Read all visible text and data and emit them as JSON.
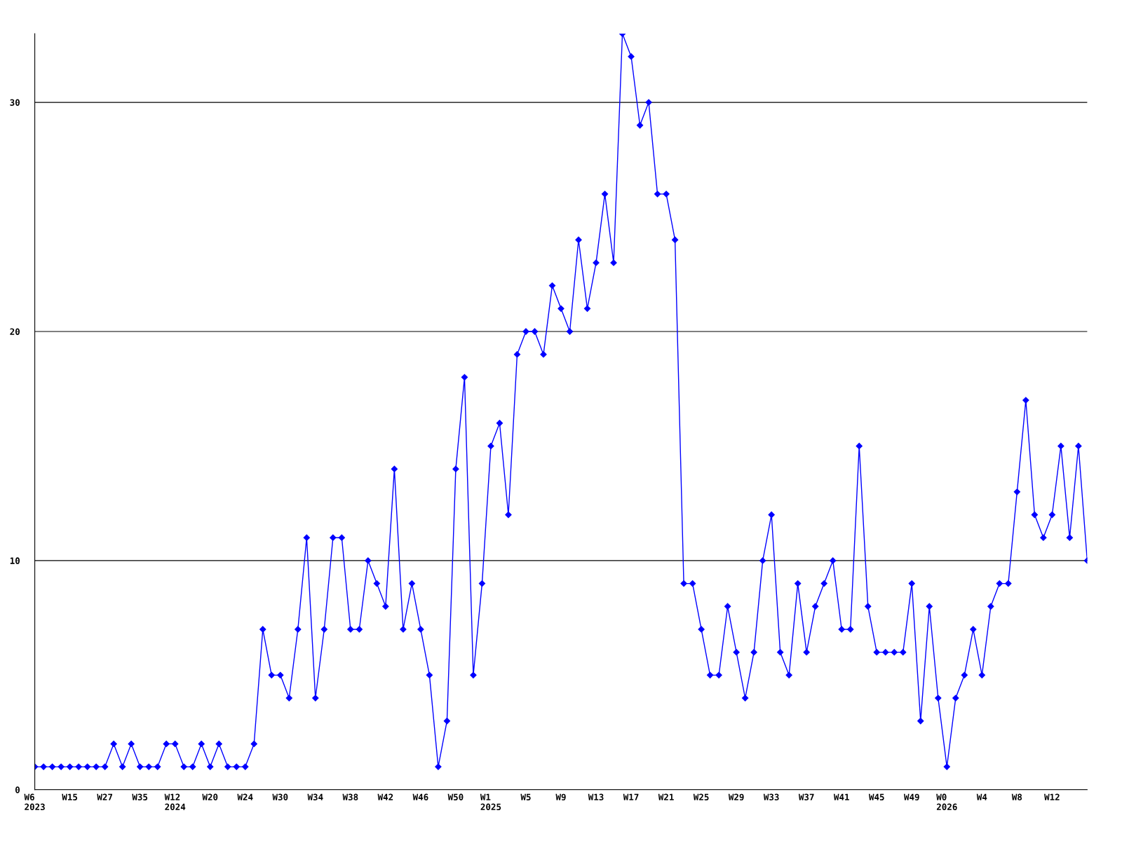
{
  "chart_data": {
    "type": "line",
    "categories": [
      "W6\n2023",
      null,
      null,
      null,
      "W15",
      null,
      null,
      null,
      "W27",
      null,
      null,
      null,
      "W35",
      null,
      null,
      null,
      "W12\n2024",
      null,
      null,
      null,
      "W20",
      null,
      null,
      null,
      "W24",
      null,
      null,
      null,
      "W30",
      null,
      null,
      null,
      "W34",
      null,
      null,
      null,
      "W38",
      null,
      null,
      null,
      "W42",
      null,
      null,
      null,
      "W46",
      null,
      null,
      null,
      "W50",
      null,
      null,
      null,
      "W1\n2025",
      null,
      null,
      null,
      "W5",
      null,
      null,
      null,
      "W9",
      null,
      null,
      null,
      "W13",
      null,
      null,
      null,
      "W17",
      null,
      null,
      null,
      "W21",
      null,
      null,
      null,
      "W25",
      null,
      null,
      null,
      "W29",
      null,
      null,
      null,
      "W33",
      null,
      null,
      null,
      "W37",
      null,
      null,
      null,
      "W41",
      null,
      null,
      null,
      "W45",
      null,
      null,
      null,
      "W49",
      null,
      null,
      null,
      "W0\n2026",
      null,
      null,
      null,
      "W4",
      null,
      null,
      null,
      "W8",
      null,
      null,
      null,
      "W12",
      null,
      null,
      null,
      null
    ],
    "series": [
      {
        "color": "#0000ff",
        "values": [
          1,
          1,
          1,
          1,
          1,
          1,
          1,
          1,
          1,
          2,
          1,
          2,
          1,
          1,
          1,
          2,
          2,
          1,
          1,
          2,
          1,
          2,
          1,
          1,
          1,
          2,
          7,
          5,
          5,
          4,
          7,
          11,
          4,
          7,
          11,
          11,
          7,
          7,
          10,
          9,
          8,
          14,
          7,
          9,
          7,
          5,
          1,
          3,
          14,
          18,
          5,
          9,
          15,
          16,
          12,
          19,
          20,
          20,
          19,
          22,
          21,
          20,
          24,
          21,
          23,
          26,
          23,
          33,
          32,
          29,
          30,
          26,
          26,
          24,
          9,
          9,
          7,
          5,
          5,
          8,
          6,
          4,
          6,
          10,
          12,
          6,
          5,
          9,
          6,
          8,
          9,
          10,
          7,
          7,
          15,
          8,
          6,
          6,
          6,
          6,
          9,
          3,
          8,
          4,
          1,
          4,
          5,
          7,
          5,
          8,
          9,
          9,
          13,
          17,
          12,
          11,
          12,
          15,
          11,
          15,
          10
        ]
      }
    ],
    "ylim": [
      0,
      33
    ],
    "yticks": [
      0,
      10,
      20,
      30
    ],
    "grid": "y",
    "marker": "diamond",
    "line_style": "solid"
  }
}
